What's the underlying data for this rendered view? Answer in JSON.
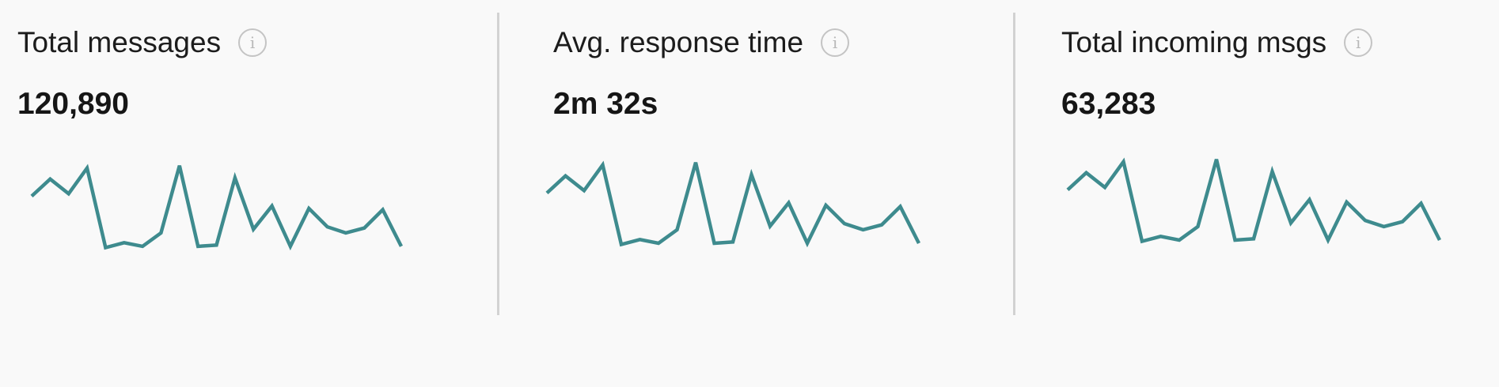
{
  "metrics": [
    {
      "label": "Total messages",
      "value": "120,890",
      "info_glyph": "i"
    },
    {
      "label": "Avg. response time",
      "value": "2m 32s",
      "info_glyph": "i"
    },
    {
      "label": "Total incoming msgs",
      "value": "63,283",
      "info_glyph": "i"
    }
  ],
  "colors": {
    "line": "#3e8b8e",
    "divider": "#d2d2d2",
    "background": "#f9f9f9",
    "info_icon": "#c4c4c4"
  },
  "chart_data": [
    {
      "type": "line",
      "title": "",
      "x": [
        1,
        2,
        3,
        4,
        5,
        6,
        7,
        8,
        9,
        10,
        11,
        12,
        13,
        14,
        15,
        16,
        17,
        18,
        19,
        20,
        21
      ],
      "series": [
        {
          "values": [
            72,
            86,
            74,
            95,
            30,
            34,
            31,
            42,
            97,
            31,
            32,
            87,
            45,
            64,
            31,
            62,
            47,
            42,
            46,
            61,
            31
          ]
        }
      ],
      "ylim": [
        0,
        100
      ],
      "grid": false,
      "legend": false
    },
    {
      "type": "line",
      "title": "",
      "x": [
        1,
        2,
        3,
        4,
        5,
        6,
        7,
        8,
        9,
        10,
        11,
        12,
        13,
        14,
        15,
        16,
        17,
        18,
        19,
        20,
        21
      ],
      "series": [
        {
          "values": [
            72,
            86,
            74,
            95,
            30,
            34,
            31,
            42,
            97,
            31,
            32,
            87,
            45,
            64,
            31,
            62,
            47,
            42,
            46,
            61,
            31
          ]
        }
      ],
      "ylim": [
        0,
        100
      ],
      "grid": false,
      "legend": false
    },
    {
      "type": "line",
      "title": "",
      "x": [
        1,
        2,
        3,
        4,
        5,
        6,
        7,
        8,
        9,
        10,
        11,
        12,
        13,
        14,
        15,
        16,
        17,
        18,
        19,
        20,
        21
      ],
      "series": [
        {
          "values": [
            72,
            86,
            74,
            95,
            30,
            34,
            31,
            42,
            97,
            31,
            32,
            87,
            45,
            64,
            31,
            62,
            47,
            42,
            46,
            61,
            31
          ]
        }
      ],
      "ylim": [
        0,
        100
      ],
      "grid": false,
      "legend": false
    }
  ]
}
